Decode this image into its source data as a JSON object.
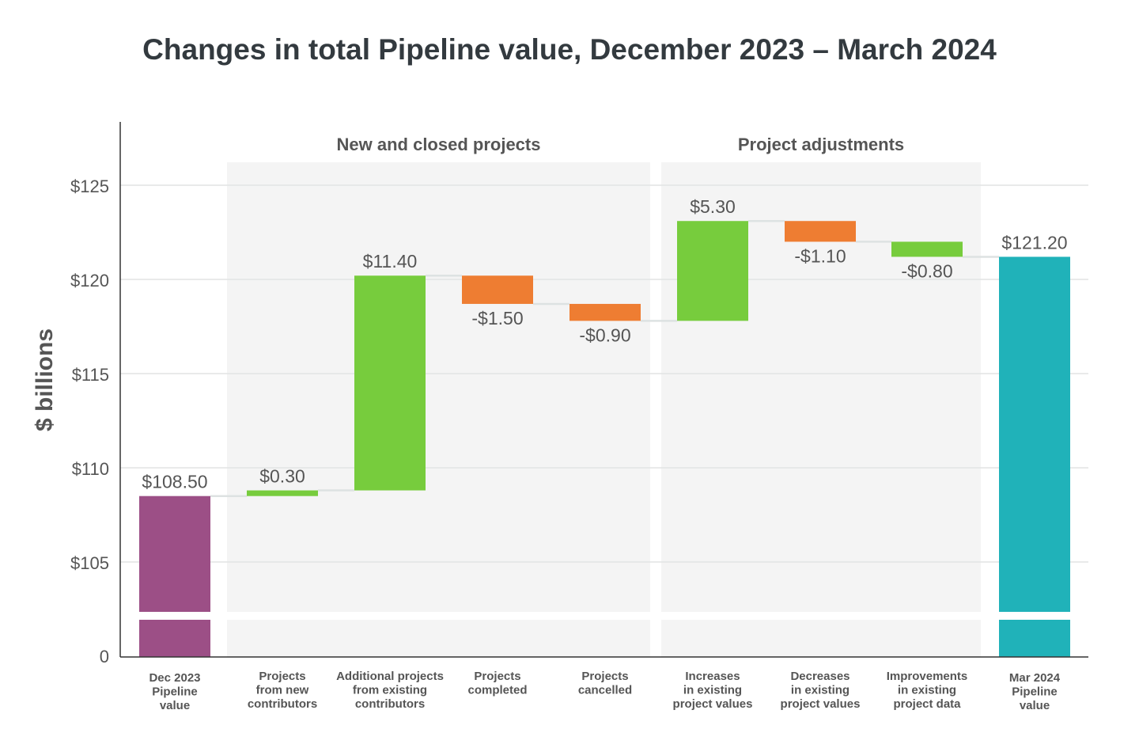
{
  "chart_data": {
    "type": "waterfall",
    "title": "Changes in total Pipeline value, December 2023 – March 2024",
    "ylabel": "$ billions",
    "ylim": [
      0,
      128
    ],
    "axis_break": [
      0,
      104
    ],
    "yticks": [
      {
        "value": 125,
        "label": "$125"
      },
      {
        "value": 120,
        "label": "$120"
      },
      {
        "value": 115,
        "label": "$115"
      },
      {
        "value": 110,
        "label": "$110"
      },
      {
        "value": 105,
        "label": "$105"
      },
      {
        "value": 0,
        "label": "0"
      }
    ],
    "grid": true,
    "groups": [
      {
        "label": "New and closed projects",
        "from": 1,
        "to": 4
      },
      {
        "label": "Project adjustments",
        "from": 5,
        "to": 7
      }
    ],
    "bars": [
      {
        "category": [
          "Dec 2023",
          "Pipeline",
          "value"
        ],
        "kind": "total",
        "value": 108.5,
        "label": "$108.50",
        "color": "#9c4f86"
      },
      {
        "category": [
          "Projects",
          "from new",
          "contributors"
        ],
        "kind": "delta",
        "value": 0.3,
        "label": "$0.30",
        "color": "#77cc3d"
      },
      {
        "category": [
          "Additional projects",
          "from existing",
          "contributors"
        ],
        "kind": "delta",
        "value": 11.4,
        "label": "$11.40",
        "color": "#77cc3d"
      },
      {
        "category": [
          "Projects",
          "completed"
        ],
        "kind": "delta",
        "value": -1.5,
        "label": "-$1.50",
        "color": "#ee7d32"
      },
      {
        "category": [
          "Projects",
          "cancelled"
        ],
        "kind": "delta",
        "value": -0.9,
        "label": "-$0.90",
        "color": "#ee7d32"
      },
      {
        "category": [
          "Increases",
          "in existing",
          "project values"
        ],
        "kind": "delta",
        "value": 5.3,
        "label": "$5.30",
        "color": "#77cc3d"
      },
      {
        "category": [
          "Decreases",
          "in existing",
          "project values"
        ],
        "kind": "delta",
        "value": -1.1,
        "label": "-$1.10",
        "color": "#ee7d32"
      },
      {
        "category": [
          "Improvements",
          "in existing",
          "project data"
        ],
        "kind": "delta",
        "value": -0.8,
        "label": "-$0.80",
        "color": "#77cc3d"
      },
      {
        "category": [
          "Mar 2024",
          "Pipeline",
          "value"
        ],
        "kind": "total",
        "value": 121.2,
        "label": "$121.20",
        "color": "#20b2b9"
      }
    ]
  }
}
